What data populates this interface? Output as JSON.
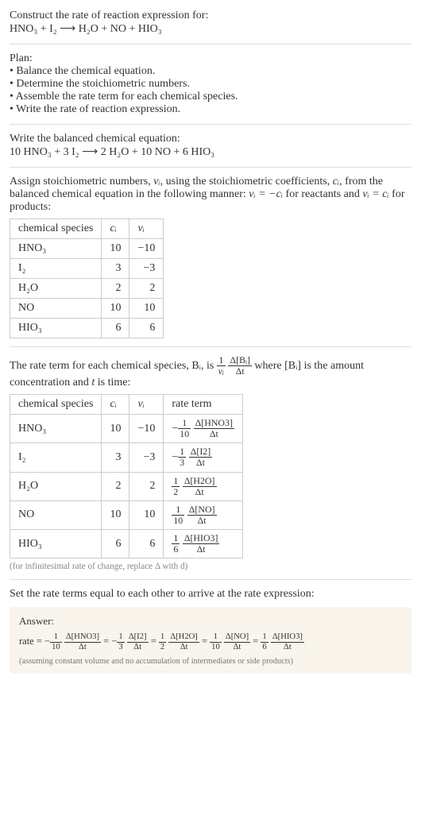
{
  "intro": {
    "construct_label": "Construct the rate of reaction expression for:",
    "equation_lhs": "HNO₃ + I₂",
    "equation_arrow": "⟶",
    "equation_rhs": "H₂O + NO + HIO₃"
  },
  "plan": {
    "heading": "Plan:",
    "items": [
      "Balance the chemical equation.",
      "Determine the stoichiometric numbers.",
      "Assemble the rate term for each chemical species.",
      "Write the rate of reaction expression."
    ]
  },
  "balanced": {
    "heading": "Write the balanced chemical equation:",
    "equation": "10 HNO₃ + 3 I₂  ⟶  2 H₂O + 10 NO + 6 HIO₃"
  },
  "assign": {
    "text_before": "Assign stoichiometric numbers, ",
    "nu_i": "νᵢ",
    "text_mid1": ", using the stoichiometric coefficients, ",
    "c_i": "cᵢ",
    "text_mid2": ", from the balanced chemical equation in the following manner: ",
    "rel1": "νᵢ = −cᵢ",
    "text_mid3": " for reactants and ",
    "rel2": "νᵢ = cᵢ",
    "text_after": " for products:",
    "table": {
      "headers": [
        "chemical species",
        "cᵢ",
        "νᵢ"
      ],
      "rows": [
        {
          "species": "HNO₃",
          "c": "10",
          "nu": "−10"
        },
        {
          "species": "I₂",
          "c": "3",
          "nu": "−3"
        },
        {
          "species": "H₂O",
          "c": "2",
          "nu": "2"
        },
        {
          "species": "NO",
          "c": "10",
          "nu": "10"
        },
        {
          "species": "HIO₃",
          "c": "6",
          "nu": "6"
        }
      ]
    }
  },
  "rateterm": {
    "text_before": "The rate term for each chemical species, Bᵢ, is ",
    "frac_outer_num": "1",
    "frac_outer_den": "νᵢ",
    "frac_inner_num": "Δ[Bᵢ]",
    "frac_inner_den": "Δt",
    "text_mid": " where [Bᵢ] is the amount concentration and ",
    "t": "t",
    "text_after": " is time:",
    "table": {
      "headers": [
        "chemical species",
        "cᵢ",
        "νᵢ",
        "rate term"
      ],
      "rows": [
        {
          "species": "HNO₃",
          "c": "10",
          "nu": "−10",
          "sign": "−",
          "coef_num": "1",
          "coef_den": "10",
          "delta_num": "Δ[HNO3]",
          "delta_den": "Δt"
        },
        {
          "species": "I₂",
          "c": "3",
          "nu": "−3",
          "sign": "−",
          "coef_num": "1",
          "coef_den": "3",
          "delta_num": "Δ[I2]",
          "delta_den": "Δt"
        },
        {
          "species": "H₂O",
          "c": "2",
          "nu": "2",
          "sign": "",
          "coef_num": "1",
          "coef_den": "2",
          "delta_num": "Δ[H2O]",
          "delta_den": "Δt"
        },
        {
          "species": "NO",
          "c": "10",
          "nu": "10",
          "sign": "",
          "coef_num": "1",
          "coef_den": "10",
          "delta_num": "Δ[NO]",
          "delta_den": "Δt"
        },
        {
          "species": "HIO₃",
          "c": "6",
          "nu": "6",
          "sign": "",
          "coef_num": "1",
          "coef_den": "6",
          "delta_num": "Δ[HIO3]",
          "delta_den": "Δt"
        }
      ]
    },
    "footnote": "(for infinitesimal rate of change, replace Δ with d)"
  },
  "final": {
    "heading": "Set the rate terms equal to each other to arrive at the rate expression:",
    "answer_label": "Answer:",
    "rate_label": "rate = ",
    "terms": [
      {
        "sign": "−",
        "coef_num": "1",
        "coef_den": "10",
        "delta_num": "Δ[HNO3]",
        "delta_den": "Δt"
      },
      {
        "sign": "−",
        "coef_num": "1",
        "coef_den": "3",
        "delta_num": "Δ[I2]",
        "delta_den": "Δt"
      },
      {
        "sign": "",
        "coef_num": "1",
        "coef_den": "2",
        "delta_num": "Δ[H2O]",
        "delta_den": "Δt"
      },
      {
        "sign": "",
        "coef_num": "1",
        "coef_den": "10",
        "delta_num": "Δ[NO]",
        "delta_den": "Δt"
      },
      {
        "sign": "",
        "coef_num": "1",
        "coef_den": "6",
        "delta_num": "Δ[HIO3]",
        "delta_den": "Δt"
      }
    ],
    "eq": " = ",
    "assumption": "(assuming constant volume and no accumulation of intermediates or side products)"
  },
  "colors": {
    "text": "#333333",
    "hr": "#dddddd",
    "table_border": "#cccccc",
    "footnote": "#888888",
    "answer_bg": "#f9f5ec",
    "assumption": "#777777"
  }
}
